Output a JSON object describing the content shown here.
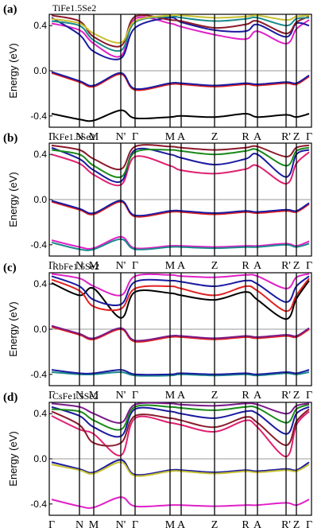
{
  "chart_data": [
    {
      "type": "line",
      "panel_label": "(a)",
      "material": "TiFe1.5Se2",
      "ylabel": "Energy (eV)",
      "ylim": [
        -0.5,
        0.5
      ],
      "yticks": [
        "0.4",
        "0.0",
        "-0.4"
      ],
      "kpoints": [
        "Γ",
        "N",
        "M",
        "N'",
        "Γ",
        "M",
        "A",
        "Z",
        "R",
        "A",
        "R'",
        "Z",
        "Γ"
      ],
      "series": [
        {
          "color": "#000000",
          "values": [
            -0.38,
            -0.43,
            -0.44,
            -0.35,
            -0.42,
            -0.41,
            -0.4,
            -0.41,
            -0.38,
            -0.41,
            -0.39,
            -0.41,
            -0.38
          ]
        },
        {
          "color": "#e02020",
          "values": [
            -0.02,
            -0.1,
            -0.14,
            -0.03,
            -0.17,
            -0.12,
            -0.12,
            -0.14,
            -0.12,
            -0.13,
            -0.11,
            -0.12,
            -0.05
          ]
        },
        {
          "color": "#1a1aa0",
          "values": [
            -0.01,
            -0.09,
            -0.13,
            -0.02,
            -0.16,
            -0.11,
            -0.11,
            -0.13,
            -0.11,
            -0.12,
            -0.1,
            -0.11,
            -0.04
          ]
        },
        {
          "color": "#e020c8",
          "values": [
            0.42,
            0.36,
            0.24,
            0.13,
            0.46,
            0.42,
            0.39,
            0.32,
            0.28,
            0.35,
            0.24,
            0.37,
            0.45
          ]
        },
        {
          "color": "#1a1aa0",
          "values": [
            0.47,
            0.32,
            0.17,
            0.11,
            0.38,
            0.47,
            0.43,
            0.36,
            0.35,
            0.41,
            0.3,
            0.42,
            0.4
          ]
        },
        {
          "color": "#8b1a2a",
          "values": [
            0.49,
            0.44,
            0.3,
            0.22,
            0.48,
            0.45,
            0.44,
            0.38,
            0.41,
            0.44,
            0.33,
            0.43,
            0.48
          ]
        },
        {
          "color": "#1a8a8a",
          "values": [
            0.44,
            0.4,
            0.27,
            0.18,
            0.43,
            0.48,
            0.47,
            0.44,
            0.46,
            0.47,
            0.4,
            0.46,
            0.47
          ]
        },
        {
          "color": "#c8c030",
          "values": [
            0.46,
            0.42,
            0.33,
            0.25,
            0.44,
            0.49,
            0.49,
            0.47,
            0.48,
            0.49,
            0.45,
            0.48,
            0.49
          ]
        }
      ]
    },
    {
      "type": "line",
      "panel_label": "(b)",
      "material": "KFe1.5Se2",
      "ylabel": "Energy (eV)",
      "ylim": [
        -0.5,
        0.5
      ],
      "yticks": [
        "0.4",
        "0.0",
        "-0.4"
      ],
      "kpoints": [
        "Γ",
        "N",
        "M",
        "N'",
        "Γ",
        "M",
        "A",
        "Z",
        "R",
        "A",
        "R'",
        "Z",
        "Γ"
      ],
      "series": [
        {
          "color": "#e020c8",
          "values": [
            -0.36,
            -0.42,
            -0.43,
            -0.33,
            -0.43,
            -0.41,
            -0.41,
            -0.42,
            -0.41,
            -0.41,
            -0.39,
            -0.41,
            -0.37
          ]
        },
        {
          "color": "#1a8a8a",
          "values": [
            -0.38,
            -0.44,
            -0.44,
            -0.35,
            -0.44,
            -0.42,
            -0.42,
            -0.43,
            -0.42,
            -0.42,
            -0.4,
            -0.42,
            -0.39
          ]
        },
        {
          "color": "#e02020",
          "values": [
            -0.02,
            -0.09,
            -0.13,
            -0.02,
            -0.15,
            -0.11,
            -0.11,
            -0.13,
            -0.11,
            -0.12,
            -0.1,
            -0.11,
            -0.04
          ]
        },
        {
          "color": "#1a1aa0",
          "values": [
            -0.01,
            -0.08,
            -0.12,
            -0.01,
            -0.14,
            -0.1,
            -0.1,
            -0.12,
            -0.1,
            -0.11,
            -0.09,
            -0.1,
            -0.03
          ]
        },
        {
          "color": "#e02070",
          "values": [
            0.4,
            0.32,
            0.22,
            0.13,
            0.38,
            0.3,
            0.26,
            0.23,
            0.27,
            0.3,
            0.14,
            0.32,
            0.42
          ]
        },
        {
          "color": "#1a1aa0",
          "values": [
            0.46,
            0.36,
            0.26,
            0.16,
            0.44,
            0.4,
            0.37,
            0.31,
            0.36,
            0.4,
            0.2,
            0.4,
            0.44
          ]
        },
        {
          "color": "#1a8a1a",
          "values": [
            0.44,
            0.4,
            0.3,
            0.2,
            0.42,
            0.44,
            0.43,
            0.4,
            0.43,
            0.44,
            0.3,
            0.43,
            0.46
          ]
        },
        {
          "color": "#8b1a2a",
          "values": [
            0.48,
            0.44,
            0.36,
            0.27,
            0.47,
            0.47,
            0.46,
            0.44,
            0.46,
            0.47,
            0.38,
            0.46,
            0.48
          ]
        }
      ]
    },
    {
      "type": "line",
      "panel_label": "(c)",
      "material": "RbFe1.5Se2",
      "ylabel": "Energy (eV)",
      "ylim": [
        -0.5,
        0.5
      ],
      "yticks": [
        "0.4",
        "0.0",
        "-0.4"
      ],
      "kpoints": [
        "Γ",
        "N",
        "M",
        "N'",
        "Γ",
        "M",
        "A",
        "Z",
        "R",
        "A",
        "R'",
        "Z",
        "Γ"
      ],
      "series": [
        {
          "color": "#1a8a8a",
          "values": [
            -0.38,
            -0.4,
            -0.4,
            -0.38,
            -0.41,
            -0.41,
            -0.4,
            -0.41,
            -0.4,
            -0.41,
            -0.39,
            -0.4,
            -0.38
          ]
        },
        {
          "color": "#1a1aa0",
          "values": [
            -0.36,
            -0.39,
            -0.39,
            -0.36,
            -0.4,
            -0.4,
            -0.39,
            -0.4,
            -0.39,
            -0.4,
            -0.38,
            -0.39,
            -0.36
          ]
        },
        {
          "color": "#e02020",
          "values": [
            0.02,
            -0.05,
            -0.09,
            0.0,
            -0.11,
            -0.07,
            -0.07,
            -0.09,
            -0.07,
            -0.08,
            -0.06,
            -0.07,
            0.0
          ]
        },
        {
          "color": "#7a1a8a",
          "values": [
            0.03,
            -0.04,
            -0.08,
            0.01,
            -0.1,
            -0.06,
            -0.06,
            -0.08,
            -0.06,
            -0.07,
            -0.05,
            -0.06,
            0.01
          ]
        },
        {
          "color": "#000000",
          "values": [
            0.41,
            0.3,
            0.36,
            0.1,
            0.33,
            0.32,
            0.3,
            0.26,
            0.33,
            0.26,
            0.09,
            0.27,
            0.43
          ]
        },
        {
          "color": "#e02020",
          "values": [
            0.44,
            0.34,
            0.2,
            0.18,
            0.36,
            0.38,
            0.36,
            0.3,
            0.38,
            0.34,
            0.16,
            0.3,
            0.45
          ]
        },
        {
          "color": "#1a1aa0",
          "values": [
            0.47,
            0.38,
            0.26,
            0.22,
            0.42,
            0.43,
            0.42,
            0.38,
            0.43,
            0.4,
            0.24,
            0.38,
            0.47
          ]
        },
        {
          "color": "#e020c8",
          "values": [
            0.49,
            0.45,
            0.38,
            0.3,
            0.47,
            0.48,
            0.47,
            0.46,
            0.48,
            0.47,
            0.36,
            0.46,
            0.49
          ]
        }
      ]
    },
    {
      "type": "line",
      "panel_label": "(d)",
      "material": "CsFe1.5Se2",
      "ylabel": "Energy (eV)",
      "ylim": [
        -0.5,
        0.5
      ],
      "yticks": [
        "0.4",
        "0.0",
        "-0.4"
      ],
      "kpoints": [
        "Γ",
        "N",
        "M",
        "N'",
        "Γ",
        "M",
        "A",
        "Z",
        "R",
        "A",
        "R'",
        "Z",
        "Γ"
      ],
      "series": [
        {
          "color": "#e020c8",
          "values": [
            -0.36,
            -0.42,
            -0.43,
            -0.34,
            -0.42,
            -0.41,
            -0.41,
            -0.42,
            -0.41,
            -0.41,
            -0.39,
            -0.41,
            -0.36
          ]
        },
        {
          "color": "#1a1aa0",
          "values": [
            -0.03,
            -0.09,
            -0.12,
            -0.01,
            -0.14,
            -0.1,
            -0.1,
            -0.12,
            -0.1,
            -0.11,
            -0.09,
            -0.1,
            -0.03
          ]
        },
        {
          "color": "#c8c030",
          "values": [
            -0.05,
            -0.1,
            -0.13,
            -0.03,
            -0.15,
            -0.11,
            -0.11,
            -0.13,
            -0.11,
            -0.12,
            -0.1,
            -0.11,
            -0.05
          ]
        },
        {
          "color": "#e02070",
          "values": [
            0.38,
            0.26,
            0.22,
            0.03,
            0.36,
            0.32,
            0.3,
            0.24,
            0.34,
            0.28,
            0.02,
            0.3,
            0.42
          ]
        },
        {
          "color": "#8b1a2a",
          "values": [
            0.42,
            0.3,
            0.14,
            0.14,
            0.38,
            0.36,
            0.34,
            0.28,
            0.37,
            0.32,
            0.12,
            0.33,
            0.44
          ]
        },
        {
          "color": "#1a1aa0",
          "values": [
            0.46,
            0.38,
            0.28,
            0.2,
            0.44,
            0.42,
            0.4,
            0.36,
            0.42,
            0.4,
            0.22,
            0.4,
            0.46
          ]
        },
        {
          "color": "#1a8a1a",
          "values": [
            0.44,
            0.42,
            0.34,
            0.26,
            0.46,
            0.46,
            0.45,
            0.43,
            0.46,
            0.45,
            0.32,
            0.44,
            0.48
          ]
        },
        {
          "color": "#7a1a8a",
          "values": [
            0.49,
            0.46,
            0.4,
            0.32,
            0.48,
            0.49,
            0.48,
            0.47,
            0.49,
            0.48,
            0.4,
            0.47,
            0.49
          ]
        }
      ]
    }
  ]
}
